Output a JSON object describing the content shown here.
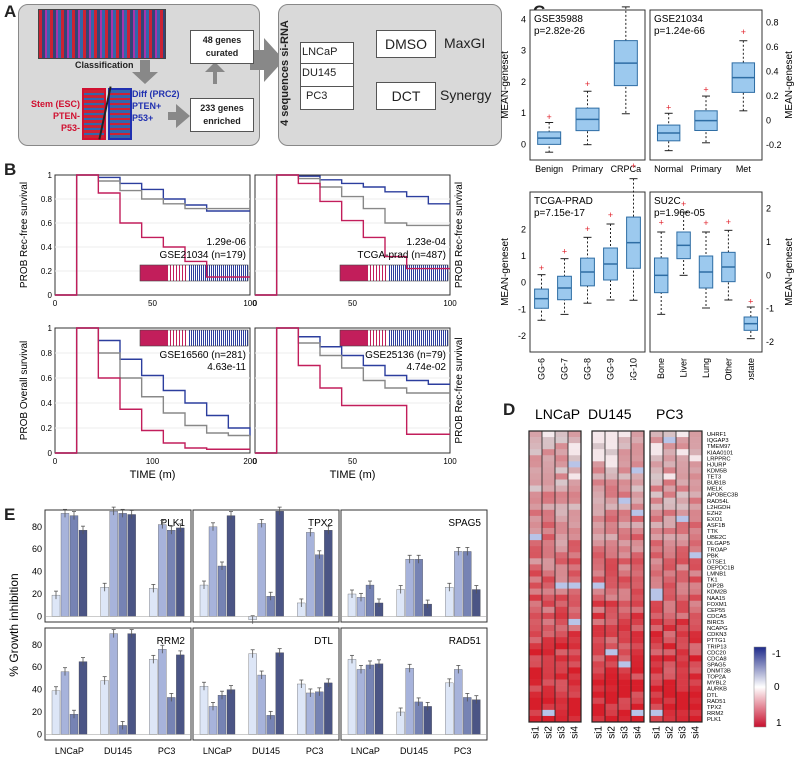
{
  "panel_letters": [
    "A",
    "B",
    "C",
    "D",
    "E"
  ],
  "panel_a": {
    "classification": "Classification",
    "stem_lines": [
      "Stem (ESC)",
      "PTEN-",
      "P53-"
    ],
    "diff_lines": [
      "Diff (PRC2)",
      "PTEN+",
      "P53+"
    ],
    "curated": [
      "48 genes",
      "curated"
    ],
    "enriched": [
      "233 genes",
      "enriched"
    ],
    "sirna": "4 sequences si-RNA",
    "cell_lines": [
      "LNCaP",
      "DU145",
      "PC3"
    ],
    "dmso": "DMSO",
    "dct": "DCT",
    "maxgi": "MaxGI",
    "synergy": "Synergy"
  },
  "panel_b": {
    "ylabels": [
      "PROB Rec-free survival",
      "PROB Rec-free survival",
      "PROB Overall survival",
      "PROB Rec-free survival"
    ],
    "xlabel": "TIME (m)",
    "ticks_y": [
      "0",
      "0.2",
      "0.4",
      "0.6",
      "0.8",
      "1"
    ],
    "ticks_x": [
      "0",
      "50",
      "100"
    ],
    "ticks_x3": [
      "0",
      "100",
      "200"
    ],
    "plots": [
      {
        "dataset": "GSE21034 (n=179)",
        "pvalue": "1.29e-06"
      },
      {
        "dataset": "TCGA-prad (n=487)",
        "pvalue": "1.23e-04"
      },
      {
        "dataset": "GSE16560 (n=281)",
        "pvalue": "4.63e-11"
      },
      {
        "dataset": "GSE25136 (n=79)",
        "pvalue": "4.74e-02"
      }
    ]
  },
  "chart_data": [
    {
      "type": "box",
      "title": "GSE35988",
      "annotation": "p=2.82e-26",
      "ylabel": "MEAN-geneset",
      "categories": [
        "Benign",
        "Primary",
        "CRPCa"
      ],
      "medians": [
        0.2,
        0.8,
        2.6
      ],
      "ylim": [
        -0.5,
        4.3
      ],
      "yticks": [
        "0",
        "1",
        "2",
        "3",
        "4"
      ]
    },
    {
      "type": "box",
      "title": "GSE21034",
      "annotation": "p=1.24e-66",
      "ylabel": "MEAN-geneset",
      "categories": [
        "Normal",
        "Primary",
        "Met"
      ],
      "medians": [
        -0.1,
        0.0,
        0.35
      ],
      "ylim": [
        -0.32,
        0.9
      ],
      "yticks": [
        "-0.2",
        "0",
        "0.2",
        "0.4",
        "0.6",
        "0.8"
      ]
    },
    {
      "type": "box",
      "title": "TCGA-PRAD",
      "annotation": "p=7.15e-17",
      "ylabel": "MEAN-geneset",
      "categories": [
        "GG-6",
        "GG-7",
        "GG-8",
        "GG-9",
        "GG-10"
      ],
      "medians": [
        -0.6,
        -0.2,
        0.4,
        0.7,
        1.5
      ],
      "ylim": [
        -2.6,
        3.4
      ],
      "yticks": [
        "-2",
        "-1",
        "0",
        "1",
        "2"
      ]
    },
    {
      "type": "box",
      "title": "SU2C",
      "annotation": "p=1.96e-05",
      "ylabel": "MEAN-geneset",
      "categories": [
        "Bone",
        "Liver",
        "Lung",
        "Other",
        "Prostate"
      ],
      "medians": [
        0.0,
        0.9,
        0.1,
        0.25,
        -1.45
      ],
      "ylim": [
        -2.3,
        2.5
      ],
      "yticks": [
        "-2",
        "-1",
        "0",
        "1",
        "2"
      ]
    },
    {
      "type": "bar",
      "ylabel": "% Growth inhibition",
      "series_names": [
        "si-1",
        "si-2",
        "si-3",
        "si-4"
      ],
      "categories": [
        "LNCaP",
        "DU145",
        "PC3"
      ],
      "genes": [
        {
          "name": "PLK1",
          "values": [
            [
              19,
              92,
              90,
              77
            ],
            [
              26,
              94,
              92,
              91
            ],
            [
              25,
              82,
              77,
              79
            ]
          ]
        },
        {
          "name": "TPX2",
          "values": [
            [
              28,
              80,
              45,
              90
            ],
            [
              -3,
              83,
              18,
              94
            ],
            [
              12,
              75,
              55,
              77
            ]
          ]
        },
        {
          "name": "SPAG5",
          "values": [
            [
              20,
              17,
              28,
              12
            ],
            [
              24,
              51,
              51,
              11
            ],
            [
              26,
              58,
              58,
              24
            ]
          ]
        },
        {
          "name": "RRM2",
          "values": [
            [
              39,
              56,
              18,
              65
            ],
            [
              48,
              90,
              8,
              90
            ],
            [
              67,
              76,
              33,
              71
            ]
          ]
        },
        {
          "name": "DTL",
          "values": [
            [
              43,
              25,
              35,
              40
            ],
            [
              72,
              53,
              17,
              73
            ],
            [
              45,
              37,
              38,
              46
            ]
          ]
        },
        {
          "name": "RAD51",
          "values": [
            [
              67,
              58,
              62,
              63
            ],
            [
              20,
              59,
              29,
              25
            ],
            [
              46,
              58,
              33,
              31
            ]
          ]
        }
      ],
      "yticks": [
        "0",
        "20",
        "40",
        "60",
        "80"
      ]
    }
  ],
  "panel_d": {
    "lines": [
      "LNCaP",
      "DU145",
      "PC3"
    ],
    "columns": [
      "si1",
      "si2",
      "si3",
      "si4"
    ],
    "genes": [
      "UHRF1",
      "IQGAP3",
      "TMEM97",
      "KIAA0101",
      "LRPPRC",
      "HJURP",
      "KDM5B",
      "TET3",
      "BUB1B",
      "MELK",
      "APOBEC3B",
      "RAD54L",
      "L2HGDH",
      "EZH2",
      "EXO1",
      "ASF1B",
      "TTK",
      "UBE2C",
      "DLGAP5",
      "TROAP",
      "PBK",
      "GTSE1",
      "DEPDC1B",
      "LMNB1",
      "TK1",
      "DIP2B",
      "KDM2B",
      "NAA15",
      "FOXM1",
      "CEP55",
      "CDCA5",
      "BIRC5",
      "NCAPG",
      "CDKN3",
      "PTTG1",
      "TRIP13",
      "CDC20",
      "CDCA8",
      "SPAG5",
      "DNMT3B",
      "TOP2A",
      "MYBL2",
      "AURKB",
      "DTL",
      "RAD51",
      "TPX2",
      "RRM2",
      "PLK1"
    ],
    "scale": [
      "-1",
      "0",
      "1"
    ]
  }
}
